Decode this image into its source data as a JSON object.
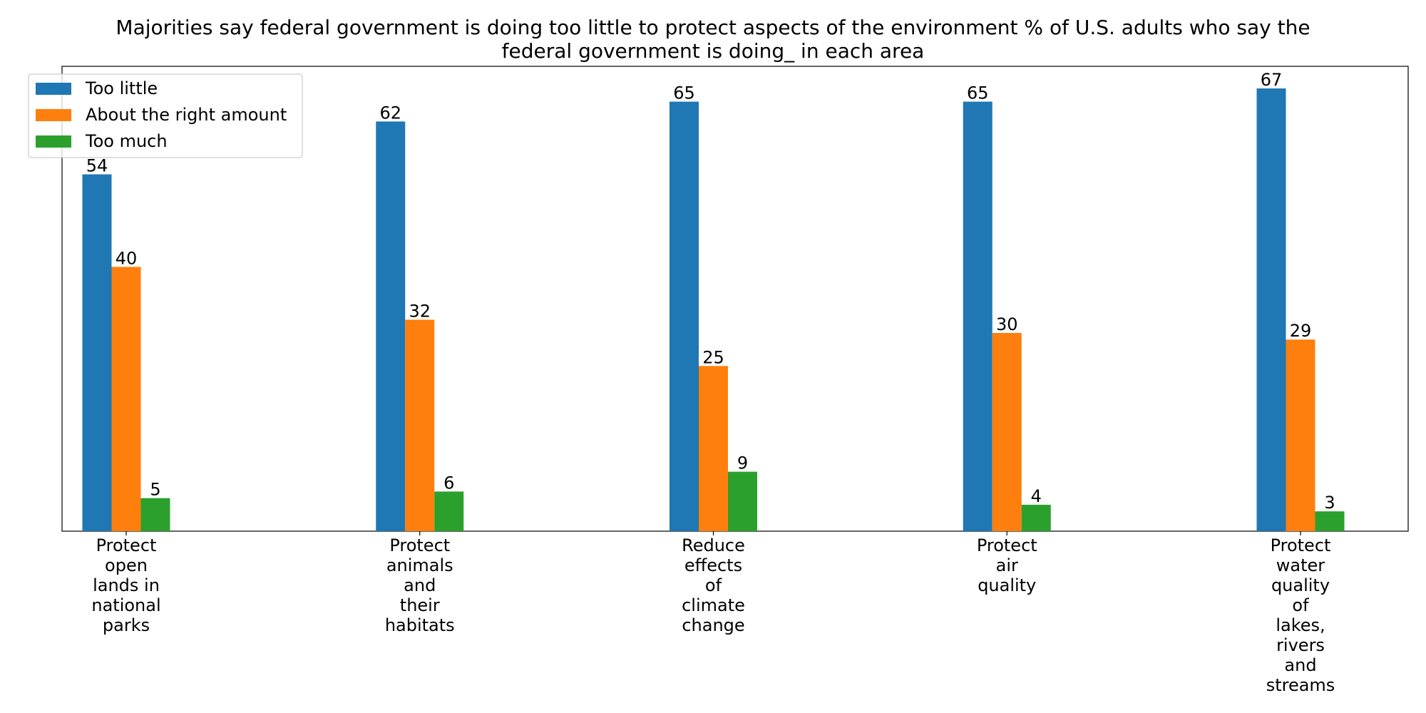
{
  "chart_data": {
    "type": "bar",
    "title": "Majorities say federal government is doing too little to protect aspects of the environment % of U.S. adults who say the federal government is doing_ in each area",
    "title_lines": [
      "Majorities say federal government is doing too little to protect aspects of the environment % of U.S. adults who say the",
      "federal government is doing_ in each area"
    ],
    "xlabel": "",
    "ylabel": "",
    "categories": [
      "Protect open lands in national parks",
      "Protect animals and their habitats",
      "Reduce effects of climate change",
      "Protect air quality",
      "Protect water quality of lakes, rivers and streams"
    ],
    "category_lines": [
      [
        "Protect",
        "open",
        "lands in",
        "national",
        "parks"
      ],
      [
        "Protect",
        "animals",
        "and",
        "their",
        "habitats"
      ],
      [
        "Reduce",
        "effects",
        "of",
        "climate",
        "change"
      ],
      [
        "Protect",
        "air",
        "quality"
      ],
      [
        "Protect",
        "water",
        "quality",
        "of",
        "lakes,",
        "rivers",
        "and",
        "streams"
      ]
    ],
    "series": [
      {
        "name": "Too little",
        "color": "#1f77b4",
        "values": [
          54,
          62,
          65,
          65,
          67
        ]
      },
      {
        "name": "About the right amount",
        "color": "#ff7f0e",
        "values": [
          40,
          32,
          25,
          30,
          29
        ]
      },
      {
        "name": "Too much",
        "color": "#2ca02c",
        "values": [
          5,
          6,
          9,
          4,
          3
        ]
      }
    ],
    "ylim": [
      0,
      70.35
    ],
    "grid": false,
    "show_y_axis": false,
    "legend_position": "top-left",
    "value_labels": true
  }
}
